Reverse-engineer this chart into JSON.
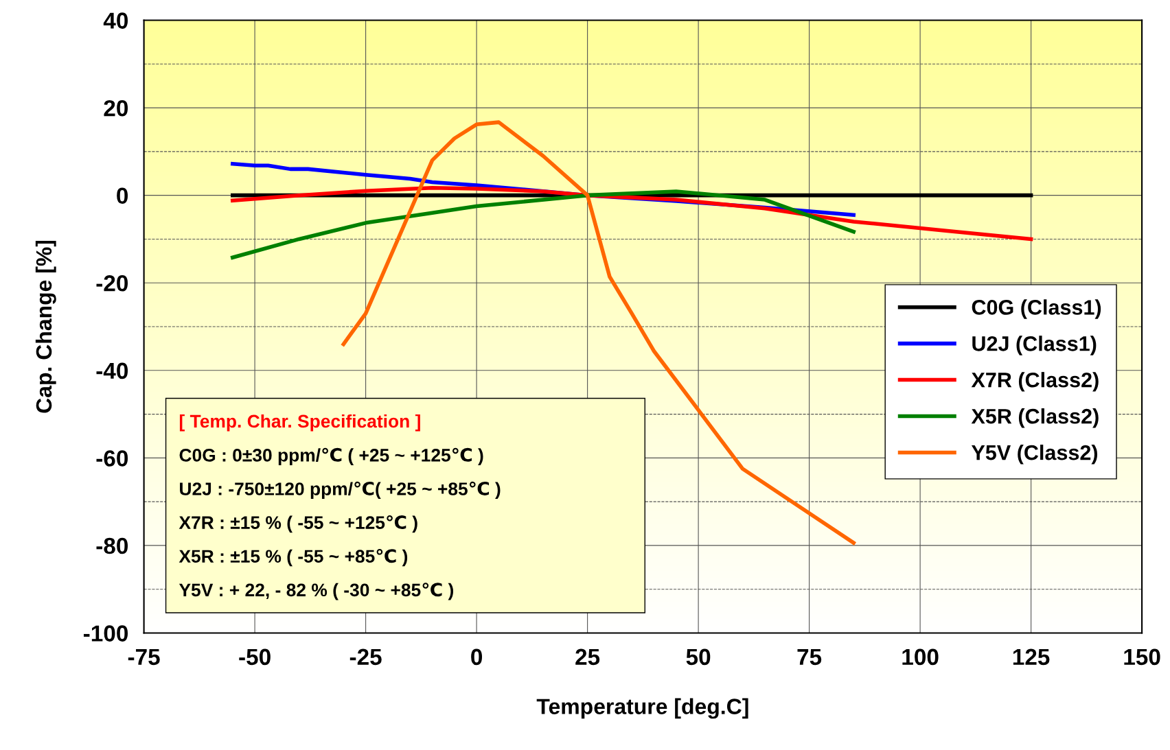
{
  "chart_data": {
    "type": "line",
    "xlabel": "Temperature [deg.C]",
    "ylabel": "Cap. Change [%]",
    "xlim": [
      -75,
      150
    ],
    "xticks": [
      -75,
      -50,
      -25,
      0,
      25,
      50,
      75,
      100,
      125,
      150
    ],
    "ylim": [
      -100,
      40
    ],
    "yticks": [
      -100,
      {
        "value": -90,
        "label": null
      },
      -80,
      {
        "value": -70,
        "label": null
      },
      -60,
      {
        "value": -50,
        "label": null
      },
      -40,
      {
        "value": -30,
        "label": null
      },
      -20,
      {
        "value": -10,
        "label": null
      },
      0,
      {
        "value": 10,
        "label": null
      },
      20,
      {
        "value": 30,
        "label": null
      },
      40
    ],
    "grid": true,
    "legend": "right",
    "line_style": "solid",
    "marker": "none",
    "series": [
      {
        "name": "C0G (Class1)",
        "color": "#000000",
        "x": [
          -55,
          0,
          25,
          85,
          125
        ],
        "values": [
          0,
          0,
          0,
          0,
          0
        ]
      },
      {
        "name": "U2J (Class1)",
        "color": "#0000ff",
        "x": [
          -55,
          -50,
          -47,
          -42,
          -38,
          -25,
          -15,
          -10,
          0,
          25,
          45,
          65,
          85
        ],
        "values": [
          7.2,
          6.8,
          6.8,
          6,
          6,
          4.7,
          3.8,
          3,
          2.3,
          0,
          -1.3,
          -2.8,
          -4.5
        ]
      },
      {
        "name": "X7R (Class2)",
        "color": "#ff0000",
        "x": [
          -55,
          -40,
          -25,
          -10,
          0,
          15,
          25,
          45,
          65,
          85,
          105,
          125
        ],
        "values": [
          -1.2,
          0,
          1,
          1.7,
          1.5,
          0.9,
          0,
          -1,
          -3,
          -6,
          -8,
          -10
        ]
      },
      {
        "name": "X5R (Class2)",
        "color": "#008000",
        "x": [
          -55,
          -40,
          -25,
          -10,
          0,
          25,
          45,
          65,
          85
        ],
        "values": [
          -14.2,
          -10,
          -6.3,
          -4,
          -2.5,
          0,
          0.9,
          -1,
          -8.3
        ]
      },
      {
        "name": "Y5V (Class2)",
        "color": "#ff6600",
        "x": [
          -30,
          -25,
          -10,
          -5,
          0,
          5,
          15,
          25,
          30,
          35,
          40,
          60,
          85
        ],
        "values": [
          -34,
          -27,
          8,
          13,
          16.2,
          16.7,
          9,
          0,
          -18.6,
          -27,
          -35.6,
          -62.5,
          -79.4
        ]
      }
    ],
    "annotations": [
      "[ Temp. Char. Specification ]",
      "C0G : 0±30 ppm/℃ ( +25 ~ +125℃ )",
      "U2J : -750±120 ppm/℃( +25 ~ +85℃ )",
      "X7R : ±15 % ( -55 ~ +125℃ )",
      "X5R : ±15 % ( -55 ~ +85℃ )",
      "Y5V : + 22, - 82 % ( -30 ~ +85℃ )"
    ]
  }
}
